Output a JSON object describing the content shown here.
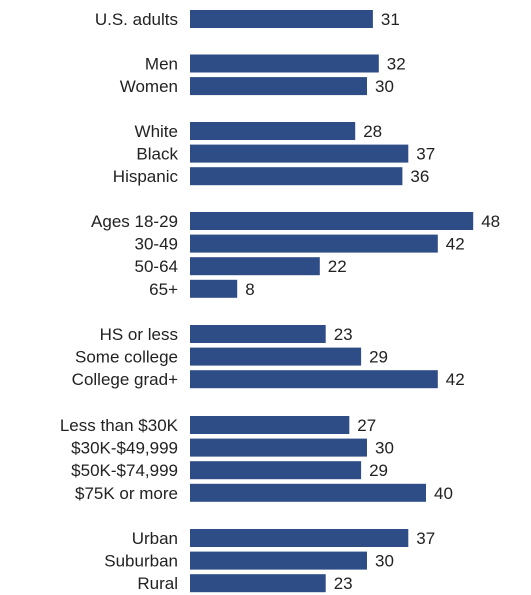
{
  "chart_data": {
    "type": "bar",
    "orientation": "horizontal",
    "bar_color": "#2e4d86",
    "grid": false,
    "xlim": [
      0,
      48
    ],
    "groups": [
      {
        "categories": [
          "U.S. adults"
        ],
        "values": [
          31
        ]
      },
      {
        "categories": [
          "Men",
          "Women"
        ],
        "values": [
          32,
          30
        ]
      },
      {
        "categories": [
          "White",
          "Black",
          "Hispanic"
        ],
        "values": [
          28,
          37,
          36
        ]
      },
      {
        "categories": [
          "Ages 18-29",
          "30-49",
          "50-64",
          "65+"
        ],
        "values": [
          48,
          42,
          22,
          8
        ]
      },
      {
        "categories": [
          "HS or less",
          "Some college",
          "College grad+"
        ],
        "values": [
          23,
          29,
          42
        ]
      },
      {
        "categories": [
          "Less than $30K",
          "$30K-$49,999",
          "$50K-$74,999",
          "$75K or more"
        ],
        "values": [
          27,
          30,
          29,
          40
        ]
      },
      {
        "categories": [
          "Urban",
          "Suburban",
          "Rural"
        ],
        "values": [
          37,
          30,
          23
        ]
      }
    ]
  }
}
